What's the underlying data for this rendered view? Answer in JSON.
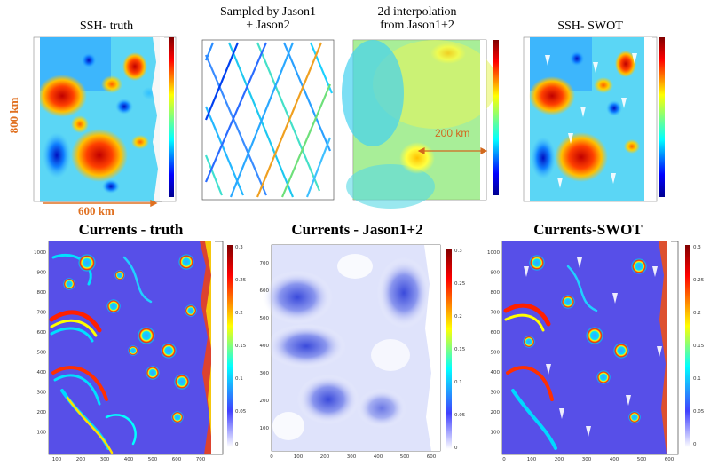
{
  "figure": {
    "panels_top": [
      {
        "id": "ssh-truth",
        "title": "SSH- truth"
      },
      {
        "id": "sampled",
        "title_line1": "Sampled by Jason1",
        "title_line2": "+ Jason2"
      },
      {
        "id": "interp",
        "title_line1": "2d interpolation",
        "title_line2": "from Jason1+2"
      },
      {
        "id": "ssh-swot",
        "title": "SSH- SWOT"
      }
    ],
    "panels_bottom": [
      {
        "id": "currents-truth",
        "title": "Currents - truth"
      },
      {
        "id": "currents-jason",
        "title": "Currents - Jason1+2"
      },
      {
        "id": "currents-swot",
        "title": "Currents-SWOT"
      }
    ],
    "annotations": {
      "height_label": "800 km",
      "width_label": "600 km",
      "scale_label": "200 km"
    },
    "ticks": {
      "current_y": [
        "1000",
        "900",
        "800",
        "700",
        "600",
        "500",
        "400",
        "300",
        "200",
        "100"
      ],
      "current_x": [
        "100",
        "200",
        "300",
        "400",
        "500",
        "600",
        "700"
      ],
      "current_x_swot": [
        "0",
        "100",
        "200",
        "300",
        "400",
        "500",
        "600"
      ],
      "jason_y": [
        "700",
        "600",
        "500",
        "400",
        "300",
        "200",
        "100"
      ],
      "jason_x": [
        "0",
        "100",
        "200",
        "300",
        "400",
        "500",
        "600"
      ],
      "colorbar": [
        "0.3",
        "0.25",
        "0.2",
        "0.15",
        "0.1",
        "0.05",
        "0"
      ]
    },
    "colors": {
      "accent_orange": "#e07020",
      "jet_low": "#00008f",
      "jet_high": "#800000"
    }
  }
}
